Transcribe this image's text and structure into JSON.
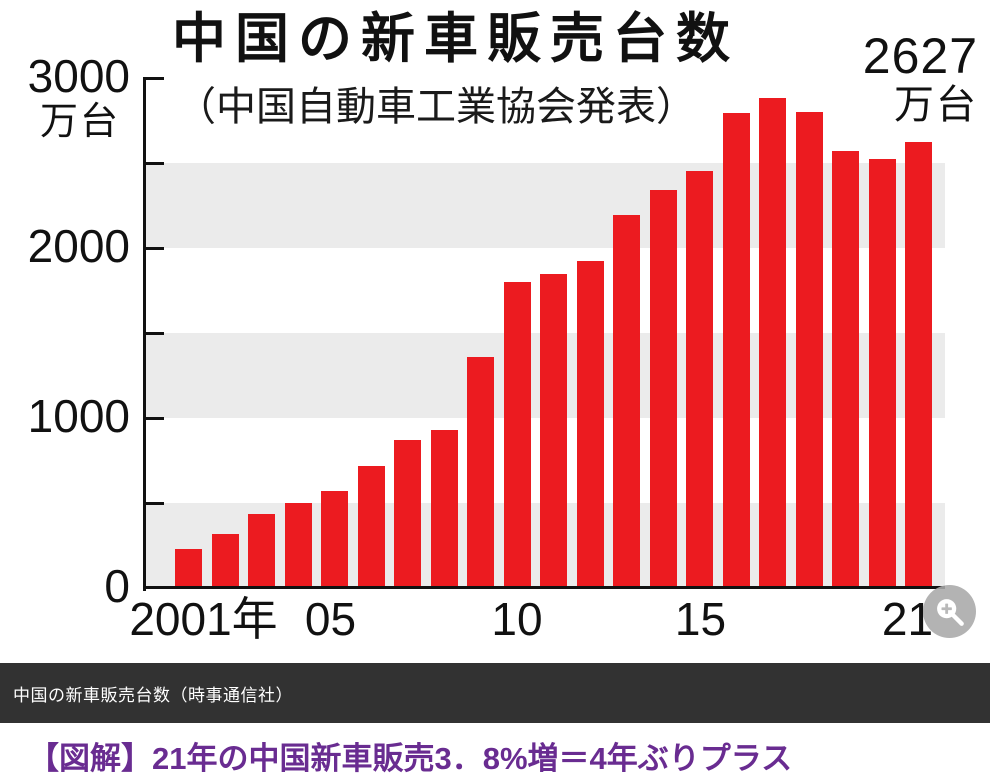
{
  "chart_data": {
    "type": "bar",
    "title": "中国の新車販売台数",
    "subtitle": "（中国自動車工業協会発表）",
    "y_axis": {
      "unit": "万台",
      "max": 3000,
      "min": 0,
      "tick_interval": 500,
      "labeled_ticks": [
        3000,
        2000,
        1000,
        0
      ]
    },
    "x_axis": {
      "tick_labels": [
        "2001年",
        "05",
        "10",
        "15",
        "21"
      ],
      "tick_indices": [
        0,
        4,
        9,
        14,
        20
      ]
    },
    "categories": [
      2001,
      2002,
      2003,
      2004,
      2005,
      2006,
      2007,
      2008,
      2009,
      2010,
      2011,
      2012,
      2013,
      2014,
      2015,
      2016,
      2017,
      2018,
      2019,
      2020,
      2021
    ],
    "values": [
      236,
      324,
      439,
      507,
      576,
      722,
      879,
      938,
      1364,
      1806,
      1851,
      1931,
      2198,
      2349,
      2460,
      2803,
      2888,
      2808,
      2577,
      2531,
      2627
    ],
    "annotation": {
      "value": "2627",
      "unit": "万台"
    },
    "colors": {
      "bar": "#ec1b20",
      "band": "#ebebeb",
      "axis": "#111111"
    },
    "grid": "alternating horizontal bands every 500",
    "legend": "none"
  },
  "page": {
    "caption": "中国の新車販売台数（時事通信社）",
    "headline": "【図解】21年の中国新車販売3．8%増＝4年ぶりプラス",
    "headline_color": "#692c91"
  },
  "icons": {
    "zoom": "magnifier"
  }
}
